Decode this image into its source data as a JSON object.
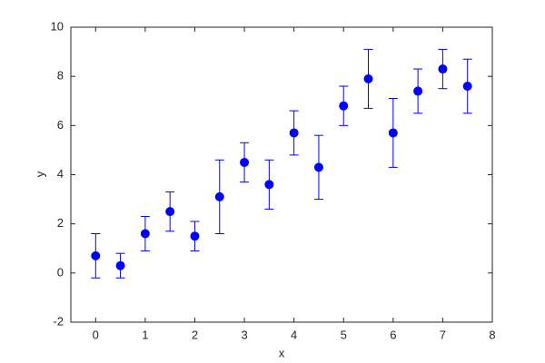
{
  "chart_data": {
    "type": "errorbar",
    "x_label": "x",
    "y_label": "y",
    "x": [
      0,
      0.5,
      1,
      1.5,
      2,
      2.5,
      3,
      3.5,
      4,
      4.5,
      5,
      5.5,
      6,
      6.5,
      7,
      7.5
    ],
    "series": [
      {
        "color": "#0000ff",
        "values": [
          0.7,
          0.3,
          1.6,
          2.5,
          1.5,
          3.1,
          4.5,
          3.6,
          5.7,
          4.3,
          6.8,
          7.9,
          5.7,
          7.4,
          8.3,
          7.6
        ],
        "errors": [
          0.9,
          0.5,
          0.7,
          0.8,
          0.6,
          1.5,
          0.8,
          1.0,
          0.9,
          1.3,
          0.8,
          1.2,
          1.4,
          0.9,
          0.8,
          1.1
        ]
      }
    ],
    "xlim": [
      -0.5,
      8
    ],
    "xticks": [
      0,
      1,
      2,
      3,
      4,
      5,
      6,
      7,
      8
    ],
    "ylim": [
      -2,
      10
    ],
    "yticks": [
      -2,
      0,
      2,
      4,
      6,
      8,
      10
    ]
  }
}
